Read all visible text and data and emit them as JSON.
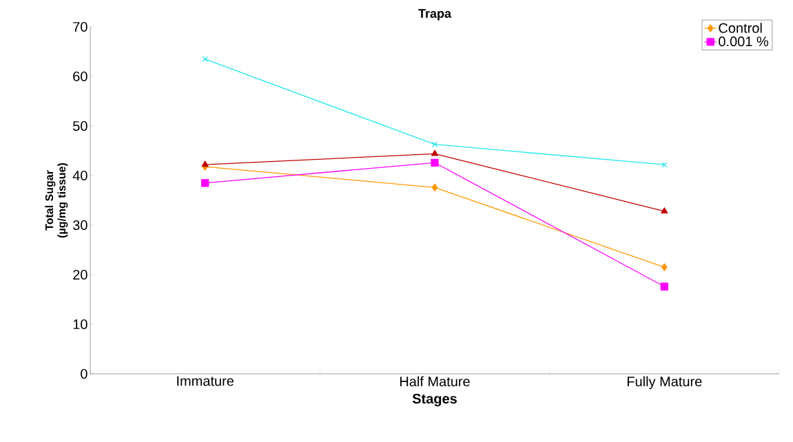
{
  "chart_data": {
    "type": "line",
    "title": "Trapa",
    "xlabel": "Stages",
    "ylabel": "Total Sugar (µg/mg tissue)",
    "categories": [
      "Immature",
      "Half Mature",
      "Fully Mature"
    ],
    "series": [
      {
        "name": "Control",
        "color": "#ff9900",
        "marker": "diamond",
        "values": [
          41.8,
          37.6,
          21.5
        ]
      },
      {
        "name": "0.001 %",
        "color": "#ff00ff",
        "marker": "square",
        "values": [
          38.5,
          42.6,
          17.6
        ]
      },
      {
        "color": "#c00000",
        "marker": "triangle",
        "values": [
          42.2,
          44.4,
          32.8
        ]
      },
      {
        "color": "#22e6ee",
        "marker": "cross",
        "values": [
          63.5,
          46.3,
          42.2
        ]
      }
    ],
    "ylim": [
      0,
      70
    ],
    "yticks": [
      0,
      10,
      20,
      30,
      40,
      50,
      60,
      70
    ],
    "legend": "top right",
    "grid": false
  }
}
